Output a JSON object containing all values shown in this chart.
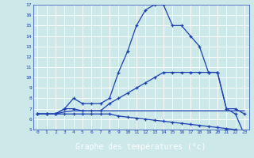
{
  "title": "Graphe des températures (°c)",
  "x_hours": [
    0,
    1,
    2,
    3,
    4,
    5,
    6,
    7,
    8,
    9,
    10,
    11,
    12,
    13,
    14,
    15,
    16,
    17,
    18,
    19,
    20,
    21,
    22,
    23
  ],
  "line1": [
    6.5,
    6.5,
    6.5,
    7.0,
    8.0,
    7.5,
    7.5,
    7.5,
    8.0,
    10.5,
    12.5,
    15.0,
    16.5,
    17.0,
    17.0,
    15.0,
    15.0,
    14.0,
    13.0,
    10.5,
    10.5,
    7.0,
    7.0,
    6.5
  ],
  "line2": [
    6.5,
    6.5,
    6.5,
    6.5,
    6.5,
    6.5,
    6.5,
    6.5,
    6.5,
    6.3,
    6.2,
    6.1,
    6.0,
    5.9,
    5.8,
    5.7,
    5.6,
    5.5,
    5.4,
    5.3,
    5.2,
    5.1,
    5.0,
    4.7
  ],
  "line3": [
    6.5,
    6.5,
    6.5,
    7.0,
    7.0,
    6.8,
    6.8,
    6.8,
    7.5,
    8.0,
    8.5,
    9.0,
    9.5,
    10.0,
    10.5,
    10.5,
    10.5,
    10.5,
    10.5,
    10.5,
    10.5,
    7.0,
    6.5,
    4.5
  ],
  "line4": [
    6.5,
    6.5,
    6.5,
    6.7,
    6.8,
    6.8,
    6.8,
    6.8,
    6.8,
    6.8,
    6.8,
    6.8,
    6.8,
    6.8,
    6.8,
    6.8,
    6.8,
    6.8,
    6.8,
    6.8,
    6.8,
    6.8,
    6.8,
    6.8
  ],
  "ylim": [
    5,
    17
  ],
  "yticks": [
    5,
    6,
    7,
    8,
    9,
    10,
    11,
    12,
    13,
    14,
    15,
    16,
    17
  ],
  "line_color": "#1a3fb0",
  "bg_color": "#cce8e8",
  "grid_color": "#ffffff",
  "axis_label_bg": "#1a3fb0",
  "axis_label_fg": "#ffffff",
  "fig_width": 3.2,
  "fig_height": 2.0,
  "dpi": 100
}
